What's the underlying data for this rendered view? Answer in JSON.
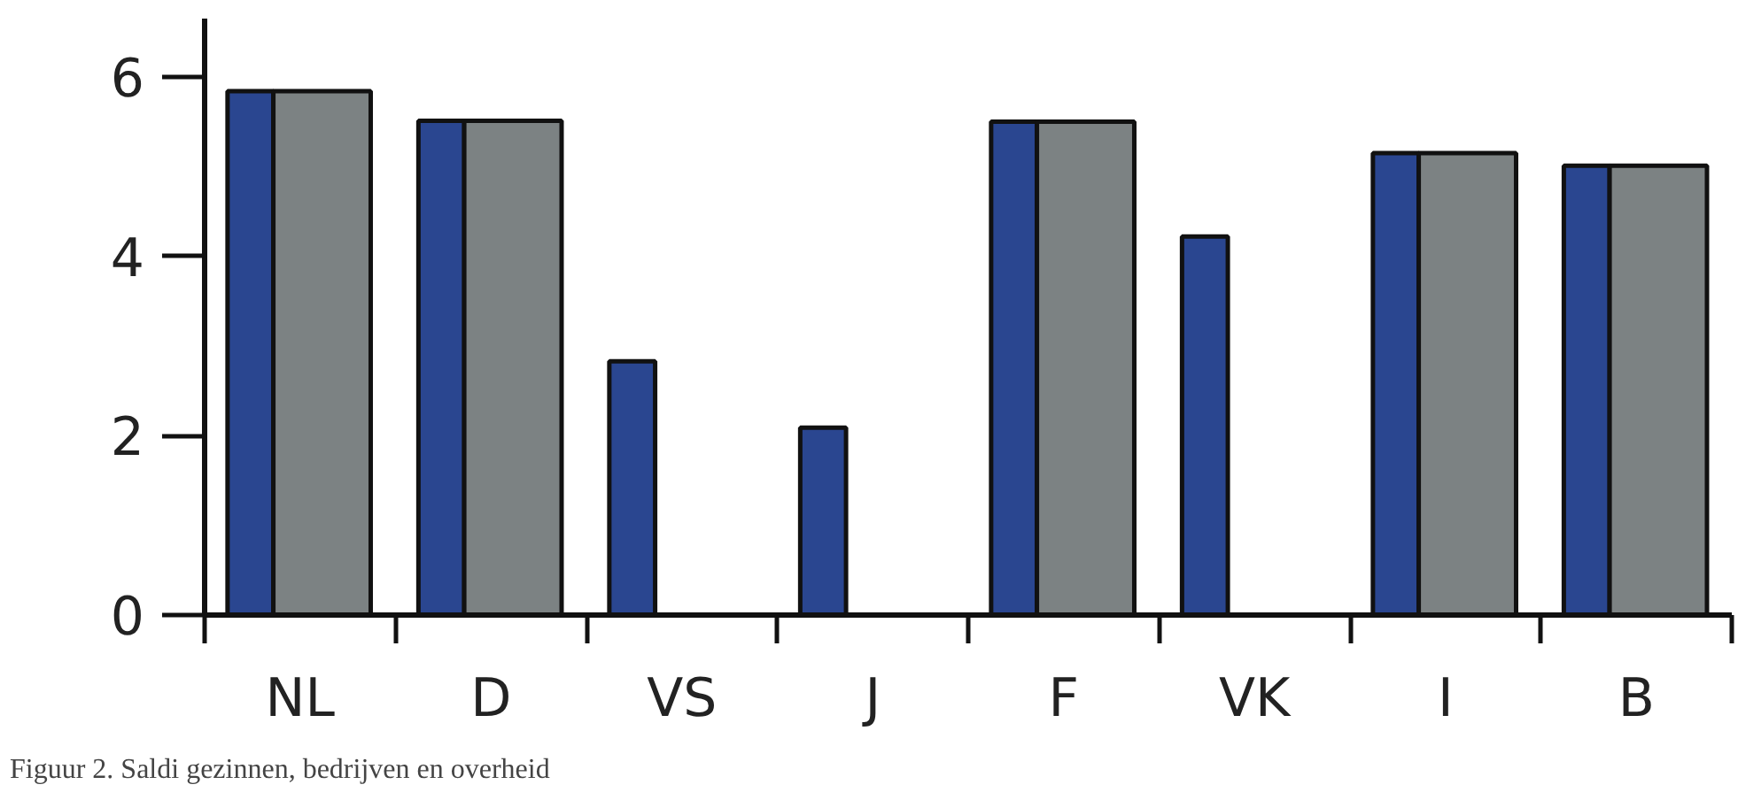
{
  "chart_data": {
    "type": "bar",
    "categories": [
      "NL",
      "D",
      "VS",
      "J",
      "F",
      "VK",
      "I",
      "B"
    ],
    "series": [
      {
        "color": "#2a4690",
        "values": [
          5.84,
          5.51,
          2.83,
          2.09,
          5.5,
          4.22,
          5.15,
          5.01
        ]
      },
      {
        "color": "#7c8283",
        "values": [
          5.84,
          5.51,
          null,
          null,
          5.5,
          null,
          5.15,
          5.01
        ]
      }
    ],
    "ylim": [
      0,
      6.65
    ],
    "yticks": [
      0,
      2,
      4,
      6
    ],
    "annotations": [
      "Figuur 2. Saldi gezinnen, bedrijven en overheid"
    ]
  }
}
